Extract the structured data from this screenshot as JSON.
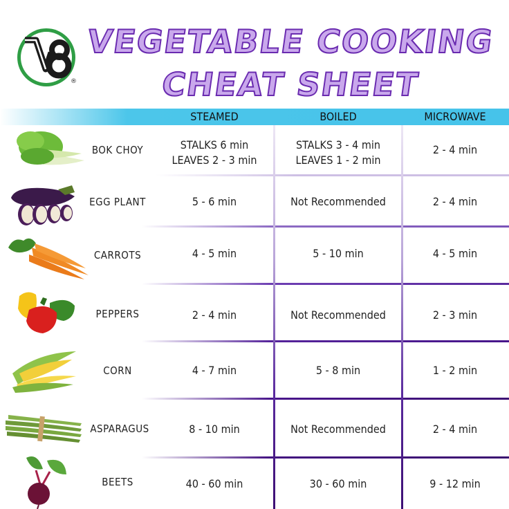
{
  "logo": {
    "text": "V8",
    "registered": "®",
    "colors": {
      "green": "#2f9e45",
      "dark": "#1b1b1b"
    }
  },
  "title": {
    "line1": "VEGETABLE COOKING",
    "line2": "CHEAT SHEET"
  },
  "headers": {
    "steamed": "STEAMED",
    "boiled": "BOILED",
    "microwave": "MICROWAVE"
  },
  "colors": {
    "band": "#46c3ea",
    "title_fill": "#c9a8ec",
    "title_stroke": "#6a2bb0",
    "grid_light": "#e4dcef",
    "grid_dark": "#3d0f74"
  },
  "rows": [
    {
      "name": "BOK CHOY",
      "icon": "bok-choy-image",
      "steamed": [
        "STALKS 6 min",
        "LEAVES 2 - 3 min"
      ],
      "boiled": [
        "STALKS 3 - 4 min",
        "LEAVES 1 - 2 min"
      ],
      "microwave": "2 - 4 min"
    },
    {
      "name": "EGG PLANT",
      "icon": "eggplant-image",
      "steamed": [
        "5 - 6 min"
      ],
      "boiled": [
        "Not Recommended"
      ],
      "microwave": "2 - 4 min"
    },
    {
      "name": "CARROTS",
      "icon": "carrots-image",
      "steamed": [
        "4 - 5 min"
      ],
      "boiled": [
        "5 - 10 min"
      ],
      "microwave": "4 - 5 min"
    },
    {
      "name": "PEPPERS",
      "icon": "peppers-image",
      "steamed": [
        "2 - 4 min"
      ],
      "boiled": [
        "Not Recommended"
      ],
      "microwave": "2 - 3 min"
    },
    {
      "name": "CORN",
      "icon": "corn-image",
      "steamed": [
        "4 - 7 min"
      ],
      "boiled": [
        "5 - 8 min"
      ],
      "microwave": "1 - 2 min"
    },
    {
      "name": "ASPARAGUS",
      "icon": "asparagus-image",
      "steamed": [
        "8 - 10 min"
      ],
      "boiled": [
        "Not Recommended"
      ],
      "microwave": "2 - 4 min"
    },
    {
      "name": "BEETS",
      "icon": "beets-image",
      "steamed": [
        "40 - 60 min"
      ],
      "boiled": [
        "30 - 60 min"
      ],
      "microwave": "9 - 12 min"
    }
  ]
}
